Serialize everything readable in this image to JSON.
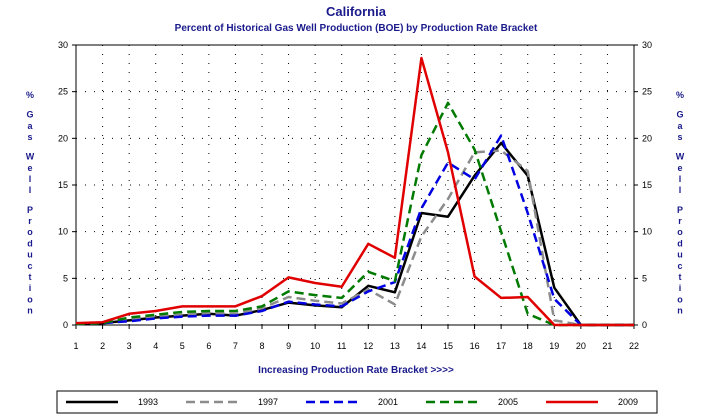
{
  "chart_data": {
    "type": "line",
    "title": "California",
    "subtitle": "Percent of Historical Gas Well Production (BOE) by Production Rate Bracket",
    "xlabel": "Increasing Production Rate Bracket >>>>",
    "ylabel": "% Gas Well Production",
    "x": [
      1,
      2,
      3,
      4,
      5,
      6,
      7,
      8,
      9,
      10,
      11,
      12,
      13,
      14,
      15,
      16,
      17,
      18,
      19,
      20,
      21,
      22
    ],
    "xlim": [
      1,
      22
    ],
    "ylim": [
      0,
      30
    ],
    "yticks": [
      0,
      5,
      10,
      15,
      20,
      25,
      30
    ],
    "grid": true,
    "legend_position": "bottom",
    "series": [
      {
        "name": "1993",
        "color": "#000000",
        "dash": "solid",
        "values": [
          0.1,
          0.2,
          0.5,
          0.8,
          1.0,
          1.2,
          1.0,
          1.6,
          2.4,
          2.1,
          1.9,
          4.2,
          3.5,
          12.0,
          11.6,
          16.0,
          19.5,
          16.0,
          4.0,
          0,
          0,
          0
        ]
      },
      {
        "name": "1997",
        "color": "#8c8c8c",
        "dash": "dash",
        "values": [
          0.1,
          0.2,
          0.6,
          0.9,
          1.1,
          1.3,
          1.2,
          1.8,
          3.0,
          2.6,
          2.3,
          3.8,
          2.2,
          9.5,
          13.5,
          18.5,
          18.7,
          16.5,
          0.5,
          0,
          0,
          0
        ]
      },
      {
        "name": "2001",
        "color": "#0000e0",
        "dash": "dash",
        "values": [
          0.1,
          0.2,
          0.4,
          0.7,
          0.9,
          1.0,
          1.0,
          1.5,
          2.5,
          2.2,
          2.0,
          3.6,
          4.6,
          12.5,
          17.4,
          15.6,
          20.3,
          12.0,
          2.8,
          0,
          0,
          0
        ]
      },
      {
        "name": "2005",
        "color": "#007a00",
        "dash": "dash",
        "values": [
          0.1,
          0.2,
          0.8,
          1.1,
          1.4,
          1.5,
          1.5,
          2.0,
          3.6,
          3.2,
          2.9,
          5.7,
          4.7,
          18.2,
          23.8,
          18.8,
          10.0,
          1.2,
          0,
          0,
          0,
          0
        ]
      },
      {
        "name": "2009",
        "color": "#e00000",
        "dash": "solid",
        "values": [
          0.2,
          0.3,
          1.2,
          1.5,
          2.0,
          2.0,
          2.0,
          3.1,
          5.1,
          4.5,
          4.1,
          8.7,
          7.2,
          28.6,
          18.5,
          5.2,
          2.9,
          3.0,
          0,
          0,
          0,
          0
        ]
      }
    ]
  }
}
